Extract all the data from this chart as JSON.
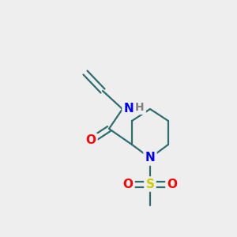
{
  "background_color": "#eeeeee",
  "atom_colors": {
    "C": "#2d6e6e",
    "N": "#0000ff",
    "O": "#ff0000",
    "S": "#cccc00",
    "H": "#808080"
  },
  "bond_color": "#2d6e6e",
  "bond_width": 1.6,
  "figsize": [
    3.0,
    3.0
  ],
  "dpi": 100
}
